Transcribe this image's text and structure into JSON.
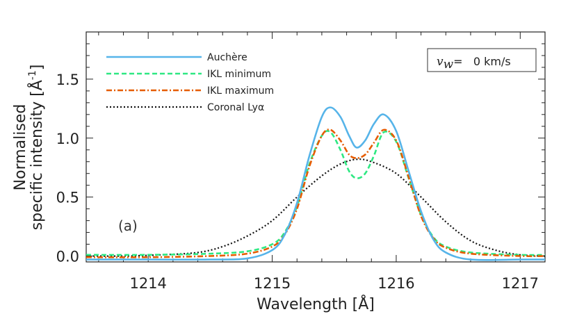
{
  "chart_data": {
    "type": "line",
    "title": "",
    "xlabel": "Wavelength [Å]",
    "ylabel_line1": "Normalised",
    "ylabel_line2": "specific intensity [Å",
    "ylabel_sup": "-1",
    "ylabel_close": "]",
    "xlim": [
      1213.5,
      1217.2
    ],
    "ylim": [
      -0.05,
      1.9
    ],
    "x_ticks": [
      1214,
      1215,
      1216,
      1217
    ],
    "x_tick_labels": [
      "1214",
      "1215",
      "1216",
      "1217"
    ],
    "y_ticks": [
      0.0,
      0.5,
      1.0,
      1.5
    ],
    "y_tick_labels": [
      "0.0",
      "0.5",
      "1.0",
      "1.5"
    ],
    "panel_label": "(a)",
    "velocity_box": {
      "symbol": "v",
      "subscript": "w",
      "text": "=   0 km/s"
    },
    "legend_placement": "top-left",
    "grid": false,
    "series": [
      {
        "name": "Auchère",
        "color": "#56b4e9",
        "style": "solid",
        "x": [
          1213.5,
          1214.0,
          1214.5,
          1214.8,
          1215.0,
          1215.1,
          1215.2,
          1215.3,
          1215.4,
          1215.47,
          1215.55,
          1215.62,
          1215.68,
          1215.75,
          1215.82,
          1215.9,
          1216.0,
          1216.1,
          1216.2,
          1216.3,
          1216.4,
          1216.6,
          1217.0,
          1217.2
        ],
        "y": [
          -0.03,
          -0.03,
          -0.03,
          -0.02,
          0.05,
          0.18,
          0.45,
          0.85,
          1.18,
          1.26,
          1.18,
          1.02,
          0.92,
          0.98,
          1.12,
          1.2,
          1.06,
          0.72,
          0.38,
          0.14,
          0.03,
          -0.03,
          -0.03,
          -0.03
        ]
      },
      {
        "name": "IKL minimum",
        "color": "#2ee882",
        "style": "dashed",
        "x": [
          1213.5,
          1214.0,
          1214.5,
          1214.8,
          1215.0,
          1215.1,
          1215.2,
          1215.3,
          1215.4,
          1215.47,
          1215.55,
          1215.62,
          1215.68,
          1215.75,
          1215.82,
          1215.9,
          1216.0,
          1216.1,
          1216.2,
          1216.3,
          1216.4,
          1216.6,
          1217.0,
          1217.2
        ],
        "y": [
          0.01,
          0.01,
          0.02,
          0.04,
          0.1,
          0.2,
          0.42,
          0.78,
          1.02,
          1.05,
          0.9,
          0.72,
          0.66,
          0.7,
          0.85,
          1.05,
          0.97,
          0.66,
          0.35,
          0.16,
          0.08,
          0.03,
          0.01,
          0.01
        ]
      },
      {
        "name": "IKL maximum",
        "color": "#e65c00",
        "style": "dashdot",
        "x": [
          1213.5,
          1214.0,
          1214.5,
          1214.8,
          1215.0,
          1215.1,
          1215.2,
          1215.3,
          1215.4,
          1215.47,
          1215.55,
          1215.62,
          1215.68,
          1215.75,
          1215.82,
          1215.9,
          1216.0,
          1216.1,
          1216.2,
          1216.3,
          1216.4,
          1216.6,
          1217.0,
          1217.2
        ],
        "y": [
          -0.01,
          -0.01,
          0.0,
          0.02,
          0.08,
          0.18,
          0.4,
          0.76,
          1.02,
          1.07,
          0.98,
          0.86,
          0.83,
          0.86,
          0.96,
          1.07,
          0.98,
          0.67,
          0.34,
          0.15,
          0.07,
          0.02,
          0.0,
          0.0
        ]
      },
      {
        "name": "Coronal Lyα",
        "color": "#111111",
        "style": "dotted",
        "x": [
          1213.5,
          1213.8,
          1214.1,
          1214.4,
          1214.6,
          1214.8,
          1215.0,
          1215.2,
          1215.4,
          1215.55,
          1215.68,
          1215.8,
          1216.0,
          1216.2,
          1216.4,
          1216.6,
          1216.8,
          1217.0,
          1217.2
        ],
        "y": [
          0.0,
          0.0,
          0.01,
          0.03,
          0.08,
          0.17,
          0.3,
          0.5,
          0.68,
          0.78,
          0.82,
          0.8,
          0.7,
          0.5,
          0.29,
          0.13,
          0.05,
          0.01,
          0.0
        ]
      }
    ]
  }
}
